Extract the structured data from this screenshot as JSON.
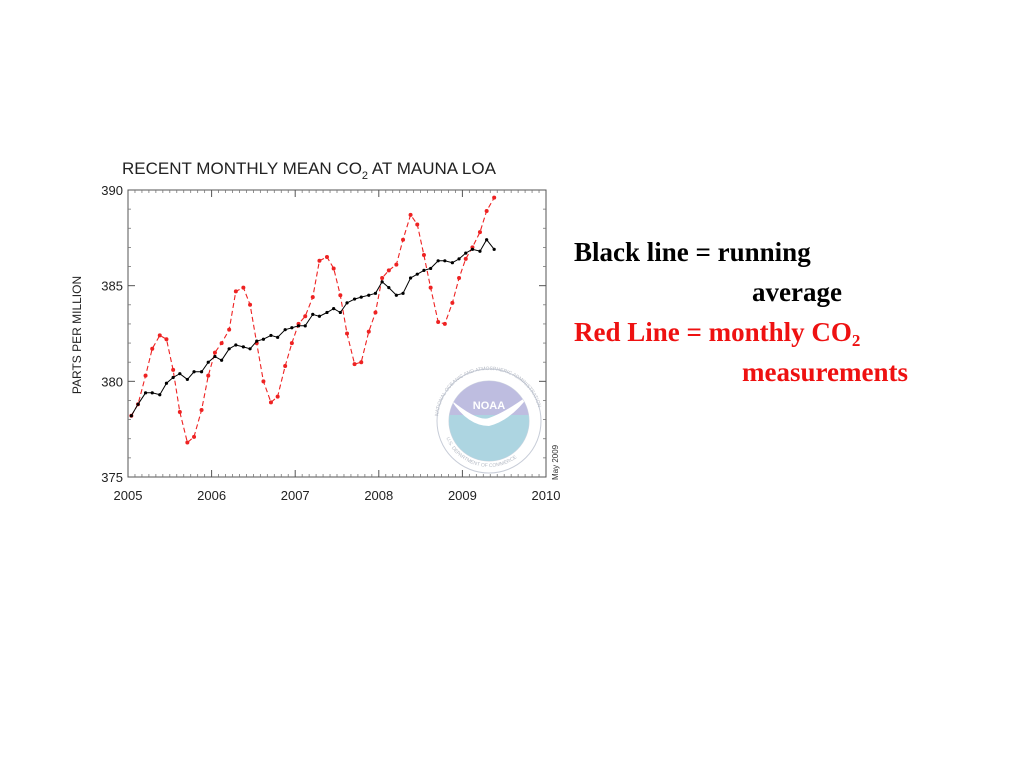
{
  "chart_data": {
    "type": "line",
    "title": "RECENT MONTHLY MEAN CO",
    "title_subscript": "2",
    "title_suffix": " AT MAUNA LOA",
    "xlabel": "",
    "ylabel": "PARTS PER MILLION",
    "xlim": [
      2005,
      2010
    ],
    "ylim": [
      375,
      390
    ],
    "x_ticks": [
      2005,
      2006,
      2007,
      2008,
      2009,
      2010
    ],
    "y_ticks": [
      375,
      380,
      385,
      390
    ],
    "grid": false,
    "date_note": "May 2009",
    "x": [
      2005.04,
      2005.12,
      2005.21,
      2005.29,
      2005.38,
      2005.46,
      2005.54,
      2005.62,
      2005.71,
      2005.79,
      2005.88,
      2005.96,
      2006.04,
      2006.12,
      2006.21,
      2006.29,
      2006.38,
      2006.46,
      2006.54,
      2006.62,
      2006.71,
      2006.79,
      2006.88,
      2006.96,
      2007.04,
      2007.12,
      2007.21,
      2007.29,
      2007.38,
      2007.46,
      2007.54,
      2007.62,
      2007.71,
      2007.79,
      2007.88,
      2007.96,
      2008.04,
      2008.12,
      2008.21,
      2008.29,
      2008.38,
      2008.46,
      2008.54,
      2008.62,
      2008.71,
      2008.79,
      2008.88,
      2008.96,
      2009.04,
      2009.12,
      2009.21,
      2009.29,
      2009.38
    ],
    "series": [
      {
        "name": "Black line = running average",
        "color": "#000000",
        "values": [
          378.2,
          378.8,
          379.4,
          379.4,
          379.3,
          379.9,
          380.2,
          380.4,
          380.1,
          380.5,
          380.5,
          381.0,
          381.3,
          381.1,
          381.7,
          381.9,
          381.8,
          381.7,
          382.1,
          382.2,
          382.4,
          382.3,
          382.7,
          382.8,
          382.9,
          382.9,
          383.5,
          383.4,
          383.6,
          383.8,
          383.6,
          384.1,
          384.3,
          384.4,
          384.5,
          384.6,
          385.2,
          384.9,
          384.5,
          384.6,
          385.4,
          385.6,
          385.8,
          385.9,
          386.3,
          386.3,
          386.2,
          386.4,
          386.7,
          386.9,
          386.8,
          387.4,
          386.9
        ]
      },
      {
        "name": "Red Line = monthly CO2 measurements",
        "color": "#ee2222",
        "values": [
          378.2,
          378.8,
          380.3,
          381.7,
          382.4,
          382.2,
          380.6,
          378.4,
          376.8,
          377.1,
          378.5,
          380.3,
          381.5,
          382.0,
          382.7,
          384.7,
          384.9,
          384.0,
          382.0,
          380.0,
          378.9,
          379.2,
          380.8,
          382.0,
          383.0,
          383.4,
          384.4,
          386.3,
          386.5,
          385.9,
          384.5,
          382.5,
          380.9,
          381.0,
          382.6,
          383.6,
          385.4,
          385.8,
          386.1,
          387.4,
          388.7,
          388.2,
          386.6,
          384.9,
          383.1,
          383.0,
          384.1,
          385.4,
          386.4,
          387.0,
          387.8,
          388.9,
          389.6
        ]
      }
    ],
    "marker_style": {
      "point_marker": "dot",
      "red_dash": "5 3"
    }
  },
  "annotation": {
    "black_label": "Black line = running",
    "black_label_cont": "average",
    "red_label": "Red Line = monthly CO",
    "red_label_sub": "2",
    "red_label_cont": "measurements"
  },
  "logo": {
    "text": "NOAA",
    "ring_text": "NATIONAL OCEANIC AND ATMOSPHERIC ADMINISTRATION",
    "ring_text_bottom": "U.S. DEPARTMENT OF COMMERCE"
  }
}
